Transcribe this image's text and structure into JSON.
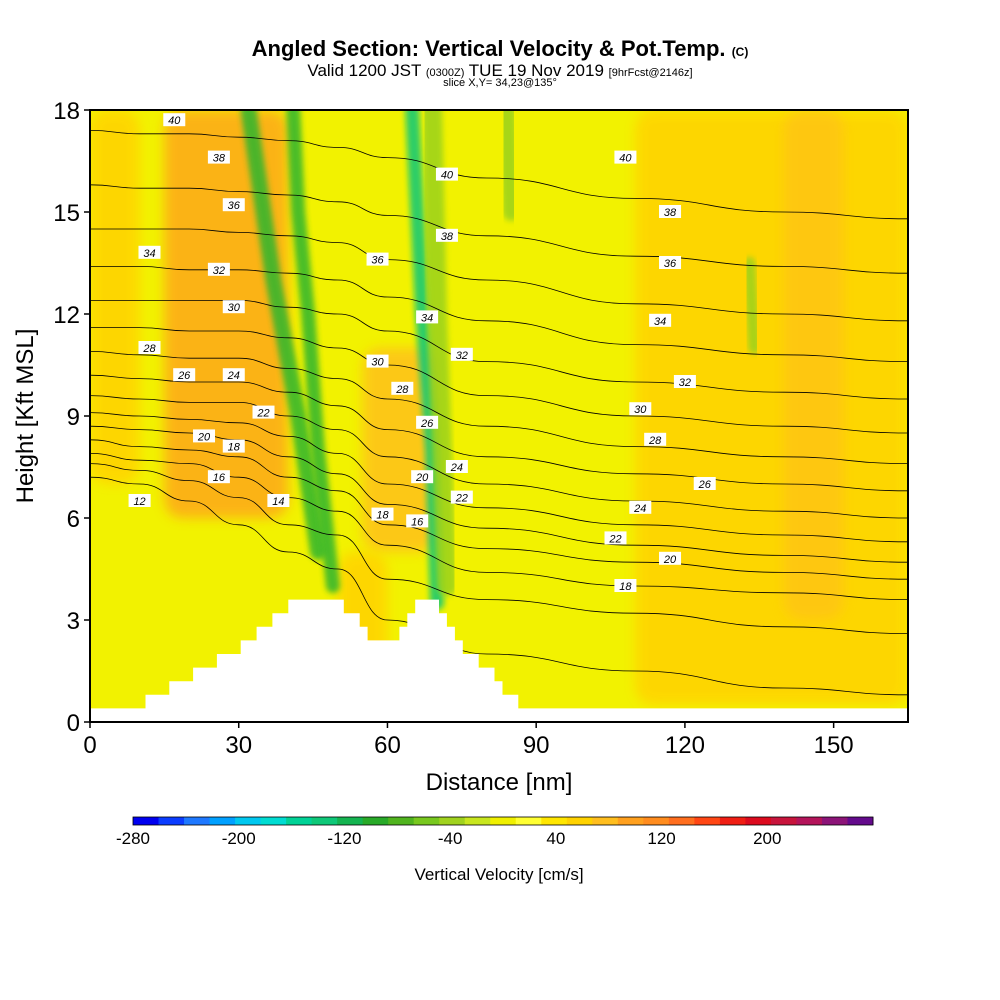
{
  "header": {
    "title_main": "Angled Section: Vertical Velocity & Pot.Temp.",
    "title_mark": "(C)",
    "valid_a": "Valid 1200 JST",
    "valid_b": "(0300Z)",
    "valid_c": "TUE 19 Nov 2019",
    "valid_d": "[9hrFcst@2146z]",
    "slice": "slice X,Y= 34,23@135°"
  },
  "chart_data": {
    "type": "heatmap",
    "xlabel": "Distance [nm]",
    "ylabel": "Height [Kft MSL]",
    "xlim": [
      0,
      165
    ],
    "ylim": [
      0,
      18
    ],
    "x_ticks": [
      0,
      30,
      60,
      90,
      120,
      150
    ],
    "y_ticks": [
      0,
      3,
      6,
      9,
      12,
      15,
      18
    ],
    "background_color": "#f2f200",
    "velocity_bands": [
      {
        "x": [
          15,
          40
        ],
        "ylo": 6,
        "yhi": 18,
        "color": "#ff9e1e",
        "peak": 0.75
      },
      {
        "x": [
          0,
          10
        ],
        "ylo": 7,
        "yhi": 18,
        "color": "#ffd400",
        "peak": 0.9
      },
      {
        "x": [
          55,
          70
        ],
        "ylo": 5,
        "yhi": 11,
        "color": "#ffbe1e",
        "peak": 0.8
      },
      {
        "x": [
          50,
          60
        ],
        "ylo": 0.5,
        "yhi": 5,
        "color": "#ffd400",
        "peak": 0.9
      },
      {
        "x": [
          110,
          165
        ],
        "ylo": 0.5,
        "yhi": 18,
        "color": "#ffd400",
        "peak": 0.9
      },
      {
        "x": [
          140,
          152
        ],
        "ylo": 3,
        "yhi": 18,
        "color": "#ffbe1e",
        "peak": 0.6
      }
    ],
    "velocity_streaks": [
      {
        "pts": [
          [
            46,
            5
          ],
          [
            42,
            9
          ],
          [
            37,
            13
          ],
          [
            32,
            18
          ]
        ],
        "color": "#2db52d",
        "width": 16
      },
      {
        "pts": [
          [
            49,
            4
          ],
          [
            46,
            8
          ],
          [
            44,
            12
          ],
          [
            42,
            15
          ],
          [
            41,
            18
          ]
        ],
        "color": "#2db52d",
        "width": 14
      },
      {
        "pts": [
          [
            70,
            3.5
          ],
          [
            69,
            8
          ],
          [
            67,
            12
          ],
          [
            66,
            15
          ],
          [
            65,
            18
          ]
        ],
        "color": "#0ec878",
        "width": 14
      },
      {
        "pts": [
          [
            72,
            4
          ],
          [
            71,
            8
          ],
          [
            70,
            12
          ],
          [
            69,
            18
          ]
        ],
        "color": "#9ad21e",
        "width": 20
      },
      {
        "pts": [
          [
            84,
            18
          ],
          [
            85,
            15
          ]
        ],
        "color": "#9ad21e",
        "width": 18
      },
      {
        "pts": [
          [
            133,
            13.5
          ],
          [
            134,
            11
          ]
        ],
        "color": "#9ad21e",
        "width": 12
      }
    ],
    "terrain": [
      [
        0,
        0.4
      ],
      [
        10,
        0.6
      ],
      [
        18,
        1.2
      ],
      [
        28,
        2
      ],
      [
        36,
        3
      ],
      [
        44,
        3.8
      ],
      [
        50,
        3.6
      ],
      [
        56,
        2.6
      ],
      [
        60,
        2.3
      ],
      [
        64,
        3
      ],
      [
        66,
        3.6
      ],
      [
        70,
        3.4
      ],
      [
        76,
        2
      ],
      [
        86,
        0.6
      ],
      [
        92,
        0.35
      ],
      [
        165,
        0.35
      ]
    ],
    "theta_levels": [
      12,
      14,
      16,
      18,
      20,
      22,
      24,
      26,
      28,
      30,
      32,
      34,
      36,
      38,
      40
    ],
    "isentropes": [
      {
        "v": 12,
        "y": [
          7.2,
          7.0,
          6.5,
          5.8,
          5.0,
          4.5,
          3.0,
          2.0,
          1.5,
          1.0,
          0.8
        ]
      },
      {
        "v": 14,
        "y": [
          7.6,
          7.4,
          7.1,
          6.6,
          5.8,
          5.5,
          4.2,
          3.6,
          3.2,
          2.8,
          2.6
        ]
      },
      {
        "v": 16,
        "y": [
          7.9,
          7.7,
          7.6,
          7.2,
          6.6,
          6.2,
          5.2,
          4.4,
          4.0,
          3.8,
          3.6
        ]
      },
      {
        "v": 18,
        "y": [
          8.3,
          8.1,
          8.0,
          7.8,
          7.2,
          6.8,
          5.8,
          5.1,
          4.7,
          4.4,
          4.2
        ]
      },
      {
        "v": 20,
        "y": [
          8.7,
          8.6,
          8.5,
          8.3,
          7.8,
          7.3,
          6.4,
          5.7,
          5.2,
          4.9,
          4.7
        ]
      },
      {
        "v": 22,
        "y": [
          9.1,
          9.0,
          8.9,
          8.8,
          8.4,
          7.9,
          7.0,
          6.3,
          5.8,
          5.5,
          5.3
        ]
      },
      {
        "v": 24,
        "y": [
          9.6,
          9.5,
          9.4,
          9.4,
          9.0,
          8.6,
          7.8,
          7.0,
          6.5,
          6.2,
          6.0
        ]
      },
      {
        "v": 26,
        "y": [
          10.2,
          10.1,
          10.0,
          10.0,
          9.7,
          9.3,
          8.6,
          7.8,
          7.3,
          7.0,
          6.8
        ]
      },
      {
        "v": 28,
        "y": [
          10.9,
          10.8,
          10.7,
          10.7,
          10.4,
          10.1,
          9.5,
          8.7,
          8.1,
          7.8,
          7.6
        ]
      },
      {
        "v": 30,
        "y": [
          11.6,
          11.6,
          11.5,
          11.5,
          11.3,
          11.0,
          10.5,
          9.6,
          9.0,
          8.7,
          8.5
        ]
      },
      {
        "v": 32,
        "y": [
          12.4,
          12.4,
          12.4,
          12.4,
          12.2,
          12.0,
          11.5,
          10.6,
          10.0,
          9.7,
          9.5
        ]
      },
      {
        "v": 34,
        "y": [
          13.4,
          13.4,
          13.3,
          13.3,
          13.2,
          13.0,
          12.5,
          11.8,
          11.1,
          10.8,
          10.6
        ]
      },
      {
        "v": 36,
        "y": [
          14.5,
          14.5,
          14.5,
          14.4,
          14.3,
          14.1,
          13.6,
          13.0,
          12.3,
          12.0,
          11.8
        ]
      },
      {
        "v": 38,
        "y": [
          15.8,
          15.7,
          15.7,
          15.6,
          15.5,
          15.3,
          14.9,
          14.3,
          13.7,
          13.4,
          13.2
        ]
      },
      {
        "v": 40,
        "y": [
          17.4,
          17.3,
          17.3,
          17.2,
          17.1,
          16.9,
          16.6,
          16.0,
          15.4,
          15.0,
          14.8
        ]
      }
    ],
    "isentrope_x": [
      0,
      10,
      20,
      30,
      40,
      50,
      60,
      80,
      110,
      140,
      165
    ],
    "contour_labels": [
      {
        "t": "40",
        "x": 17,
        "y": 17.7
      },
      {
        "t": "38",
        "x": 26,
        "y": 16.6
      },
      {
        "t": "36",
        "x": 29,
        "y": 15.2
      },
      {
        "t": "34",
        "x": 12,
        "y": 13.8
      },
      {
        "t": "32",
        "x": 26,
        "y": 13.3
      },
      {
        "t": "30",
        "x": 29,
        "y": 12.2
      },
      {
        "t": "28",
        "x": 12,
        "y": 11.0
      },
      {
        "t": "26",
        "x": 19,
        "y": 10.2
      },
      {
        "t": "24",
        "x": 29,
        "y": 10.2
      },
      {
        "t": "22",
        "x": 35,
        "y": 9.1
      },
      {
        "t": "20",
        "x": 23,
        "y": 8.4
      },
      {
        "t": "18",
        "x": 29,
        "y": 8.1
      },
      {
        "t": "16",
        "x": 26,
        "y": 7.2
      },
      {
        "t": "14",
        "x": 38,
        "y": 6.5
      },
      {
        "t": "12",
        "x": 10,
        "y": 6.5
      },
      {
        "t": "40",
        "x": 72,
        "y": 16.1
      },
      {
        "t": "38",
        "x": 72,
        "y": 14.3
      },
      {
        "t": "36",
        "x": 58,
        "y": 13.6
      },
      {
        "t": "34",
        "x": 68,
        "y": 11.9
      },
      {
        "t": "32",
        "x": 75,
        "y": 10.8
      },
      {
        "t": "30",
        "x": 58,
        "y": 10.6
      },
      {
        "t": "28",
        "x": 63,
        "y": 9.8
      },
      {
        "t": "26",
        "x": 68,
        "y": 8.8
      },
      {
        "t": "24",
        "x": 74,
        "y": 7.5
      },
      {
        "t": "20",
        "x": 67,
        "y": 7.2
      },
      {
        "t": "22",
        "x": 75,
        "y": 6.6
      },
      {
        "t": "18",
        "x": 59,
        "y": 6.1
      },
      {
        "t": "16",
        "x": 66,
        "y": 5.9
      },
      {
        "t": "40",
        "x": 108,
        "y": 16.6
      },
      {
        "t": "38",
        "x": 117,
        "y": 15.0
      },
      {
        "t": "36",
        "x": 117,
        "y": 13.5
      },
      {
        "t": "34",
        "x": 115,
        "y": 11.8
      },
      {
        "t": "32",
        "x": 120,
        "y": 10.0
      },
      {
        "t": "30",
        "x": 111,
        "y": 9.2
      },
      {
        "t": "28",
        "x": 114,
        "y": 8.3
      },
      {
        "t": "26",
        "x": 124,
        "y": 7.0
      },
      {
        "t": "24",
        "x": 111,
        "y": 6.3
      },
      {
        "t": "22",
        "x": 106,
        "y": 5.4
      },
      {
        "t": "20",
        "x": 117,
        "y": 4.8
      },
      {
        "t": "18",
        "x": 108,
        "y": 4.0
      }
    ],
    "colorbar": {
      "label": "Vertical Velocity [cm/s]",
      "tick_labels": [
        "-280",
        "-200",
        "-120",
        "-40",
        "40",
        "120",
        "200"
      ],
      "tick_values": [
        -280,
        -200,
        -120,
        -40,
        40,
        120,
        200
      ],
      "range": [
        -280,
        280
      ],
      "colors": [
        "#0000f0",
        "#0a3cff",
        "#1e78ff",
        "#00a0ff",
        "#00c8f0",
        "#00dcd2",
        "#00d296",
        "#0ec878",
        "#14b450",
        "#28aa28",
        "#50b41e",
        "#78c81e",
        "#a0d21e",
        "#c8e61e",
        "#f0f000",
        "#ffff32",
        "#ffe600",
        "#ffd200",
        "#ffbe1e",
        "#ffa01e",
        "#ff8c1e",
        "#ff6e1e",
        "#ff4614",
        "#f01e14",
        "#dc0a1e",
        "#c8143c",
        "#b4145a",
        "#8c1478",
        "#640a8c"
      ]
    }
  }
}
